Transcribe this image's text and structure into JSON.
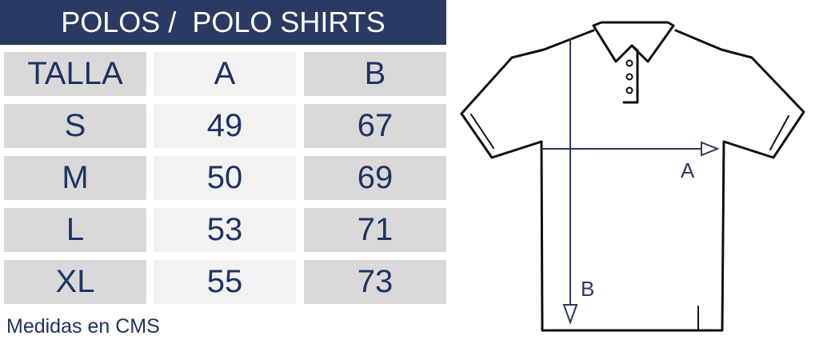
{
  "title": "POLOS /  POLO SHIRTS",
  "table": {
    "headers": [
      "TALLA",
      "A",
      "B"
    ],
    "rows": [
      [
        "S",
        "49",
        "67"
      ],
      [
        "M",
        "50",
        "69"
      ],
      [
        "L",
        "53",
        "71"
      ],
      [
        "XL",
        "55",
        "73"
      ]
    ]
  },
  "note": "Medidas en CMS",
  "diagram": {
    "label_a": "A",
    "label_b": "B"
  },
  "colors": {
    "header_bg": "#2b3a63",
    "text": "#1f3264",
    "cell_dark": "#d9d9d9",
    "cell_light": "#f2f2f2"
  }
}
